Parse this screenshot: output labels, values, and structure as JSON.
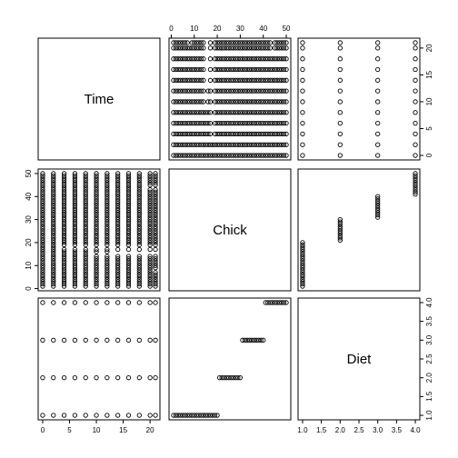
{
  "chart_data": {
    "type": "scatter",
    "variables": [
      "Time",
      "Chick",
      "Diet"
    ],
    "ranges": {
      "Time": [
        0,
        21
      ],
      "Chick": [
        1,
        50
      ],
      "Diet": [
        1,
        4
      ]
    },
    "ticks": {
      "Time": [
        0,
        5,
        10,
        15,
        20
      ],
      "Chick": [
        0,
        10,
        20,
        30,
        40,
        50
      ],
      "Diet": [
        1.0,
        1.5,
        2.0,
        2.5,
        3.0,
        3.5,
        4.0
      ]
    },
    "tick_labels": {
      "Time": [
        "0",
        "5",
        "10",
        "15",
        "20"
      ],
      "Chick": [
        "0",
        "10",
        "20",
        "30",
        "40",
        "50"
      ],
      "Diet": [
        "1.0",
        "1.5",
        "2.0",
        "2.5",
        "3.0",
        "3.5",
        "4.0"
      ]
    },
    "time_values": [
      0,
      2,
      4,
      6,
      8,
      10,
      12,
      14,
      16,
      18,
      20,
      21
    ],
    "chick_diet_groups": [
      {
        "diet": 1,
        "chicks": [
          1,
          20
        ]
      },
      {
        "diet": 2,
        "chicks": [
          21,
          30
        ]
      },
      {
        "diet": 3,
        "chicks": [
          31,
          40
        ]
      },
      {
        "diet": 4,
        "chicks": [
          41,
          50
        ]
      }
    ],
    "missing_observations": [
      {
        "chick": 8,
        "times": [
          21
        ]
      },
      {
        "chick": 15,
        "times": [
          10,
          12,
          14,
          16,
          18,
          20,
          21
        ]
      },
      {
        "chick": 16,
        "times": [
          14,
          16,
          18,
          20,
          21
        ]
      },
      {
        "chick": 18,
        "times": [
          4,
          6,
          8,
          10,
          12,
          14,
          16,
          18,
          20,
          21
        ]
      },
      {
        "chick": 44,
        "times": [
          20,
          21
        ]
      }
    ],
    "grid": false,
    "legend": "none"
  }
}
